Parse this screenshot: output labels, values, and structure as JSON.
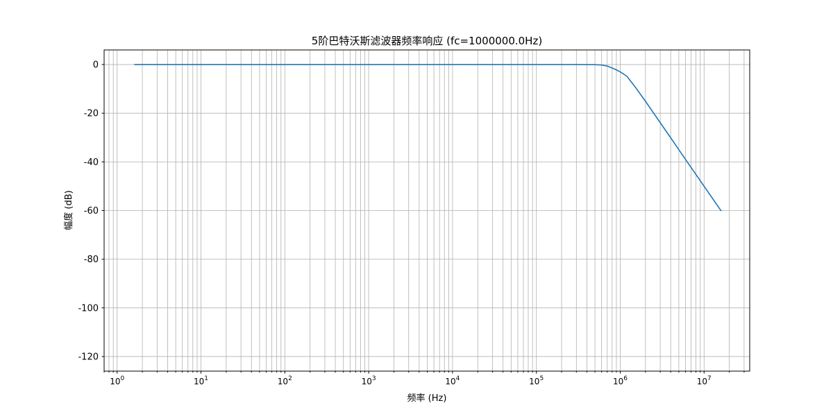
{
  "chart_data": {
    "type": "line",
    "title": "5阶巴特沃斯滤波器频率响应 (fc=1000000.0Hz)",
    "xlabel": "频率 (Hz)",
    "ylabel": "幅度 (dB)",
    "x_scale": "log",
    "xlim": [
      0.7,
      35000000
    ],
    "ylim": [
      -126,
      6
    ],
    "grid": true,
    "grid_minor": true,
    "x_ticks": [
      {
        "value": 1,
        "base": "10",
        "exp": "0"
      },
      {
        "value": 10,
        "base": "10",
        "exp": "1"
      },
      {
        "value": 100,
        "base": "10",
        "exp": "2"
      },
      {
        "value": 1000,
        "base": "10",
        "exp": "3"
      },
      {
        "value": 10000,
        "base": "10",
        "exp": "4"
      },
      {
        "value": 100000,
        "base": "10",
        "exp": "5"
      },
      {
        "value": 1000000,
        "base": "10",
        "exp": "6"
      },
      {
        "value": 10000000,
        "base": "10",
        "exp": "7"
      }
    ],
    "y_ticks": [
      0,
      -20,
      -40,
      -60,
      -80,
      -100,
      -120
    ],
    "series": [
      {
        "color": "#1f77b4",
        "x": [
          1.6,
          10,
          100,
          1000,
          10000,
          100000,
          300000,
          500000,
          600000,
          700000,
          800000,
          900000,
          1000000,
          1200000,
          1500000,
          2000000,
          3000000,
          4000000,
          5000000,
          7000000,
          10000000,
          16000000
        ],
        "y": [
          0,
          0,
          0,
          0,
          0,
          0,
          0,
          -0.04,
          -0.2,
          -0.6,
          -1.4,
          -2.2,
          -3.0,
          -4.8,
          -9.1,
          -15.1,
          -23.9,
          -30.1,
          -35.0,
          -42.3,
          -50.0,
          -60.2
        ]
      }
    ]
  }
}
